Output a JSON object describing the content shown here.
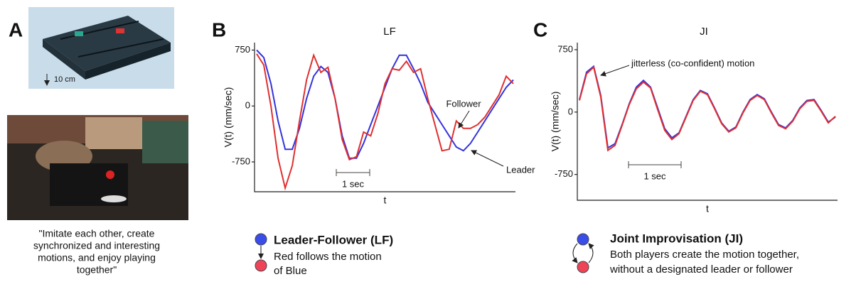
{
  "panel_labels": [
    "A",
    "B",
    "C"
  ],
  "panel_a": {
    "scale_label": "10 cm",
    "caption": [
      "\"Imitate each other, create",
      "synchronized and interesting",
      "motions, and enjoy playing",
      "together\""
    ]
  },
  "chart_data": [
    {
      "type": "line",
      "title": "LF",
      "y_label": "V(t) (mm/sec)",
      "x_label": "t",
      "categories": [
        null,
        null,
        null,
        null,
        null,
        null,
        null,
        null,
        null,
        null,
        null,
        null,
        null,
        null,
        null,
        null,
        null,
        null,
        null,
        null,
        null,
        null,
        null,
        null,
        null,
        null,
        null,
        null,
        null,
        null,
        null,
        null,
        null,
        null,
        null,
        null,
        null
      ],
      "series": [
        {
          "color": "#3333dd",
          "values": [
            750,
            650,
            300,
            -200,
            -580,
            -580,
            -300,
            100,
            400,
            530,
            450,
            100,
            -400,
            -700,
            -700,
            -500,
            -250,
            0,
            250,
            500,
            680,
            680,
            500,
            300,
            50,
            -100,
            -250,
            -400,
            -550,
            -600,
            -500,
            -350,
            -200,
            -50,
            100,
            250,
            350
          ]
        },
        {
          "color": "#e03030",
          "values": [
            700,
            550,
            0,
            -700,
            -1100,
            -800,
            -200,
            350,
            680,
            450,
            520,
            100,
            -450,
            -720,
            -680,
            -350,
            -400,
            -100,
            300,
            500,
            480,
            600,
            450,
            500,
            100,
            -250,
            -600,
            -580,
            -200,
            -300,
            -300,
            -250,
            -150,
            0,
            150,
            400,
            300
          ]
        }
      ],
      "ylim": [
        -1150,
        850
      ],
      "yticks": [
        -750,
        0,
        750
      ],
      "annotations": [
        "Follower",
        "Leader"
      ],
      "scale_bar_label": "1 sec"
    },
    {
      "type": "line",
      "title": "JI",
      "y_label": "V(t) (mm/sec)",
      "x_label": "t",
      "categories": [
        null,
        null,
        null,
        null,
        null,
        null,
        null,
        null,
        null,
        null,
        null,
        null,
        null,
        null,
        null,
        null,
        null,
        null,
        null,
        null,
        null,
        null,
        null,
        null,
        null,
        null,
        null,
        null,
        null,
        null,
        null,
        null,
        null,
        null,
        null,
        null,
        null
      ],
      "series": [
        {
          "color": "#3333dd",
          "values": [
            150,
            480,
            550,
            200,
            -430,
            -380,
            -150,
            100,
            300,
            380,
            300,
            50,
            -200,
            -310,
            -250,
            -50,
            150,
            260,
            220,
            50,
            -130,
            -230,
            -180,
            0,
            150,
            210,
            160,
            0,
            -150,
            -190,
            -100,
            50,
            140,
            150,
            20,
            -120,
            -60
          ]
        },
        {
          "color": "#e03030",
          "values": [
            140,
            460,
            540,
            180,
            -460,
            -400,
            -160,
            90,
            280,
            360,
            290,
            30,
            -220,
            -330,
            -260,
            -60,
            140,
            250,
            210,
            40,
            -140,
            -240,
            -190,
            -10,
            140,
            200,
            150,
            -10,
            -160,
            -200,
            -110,
            40,
            130,
            140,
            10,
            -130,
            -50
          ]
        }
      ],
      "ylim": [
        -1060,
        835
      ],
      "yticks": [
        -750,
        0,
        750
      ],
      "annotations": [
        "jitterless (co-confident) motion"
      ],
      "scale_bar_label": "1 sec"
    }
  ],
  "legends": [
    {
      "title": "Leader-Follower (LF)",
      "lines": [
        "Red follows the motion",
        "of Blue"
      ]
    },
    {
      "title": "Joint Improvisation (JI)",
      "lines": [
        "Both players create the motion together,",
        "without a designated leader or follower"
      ]
    }
  ]
}
